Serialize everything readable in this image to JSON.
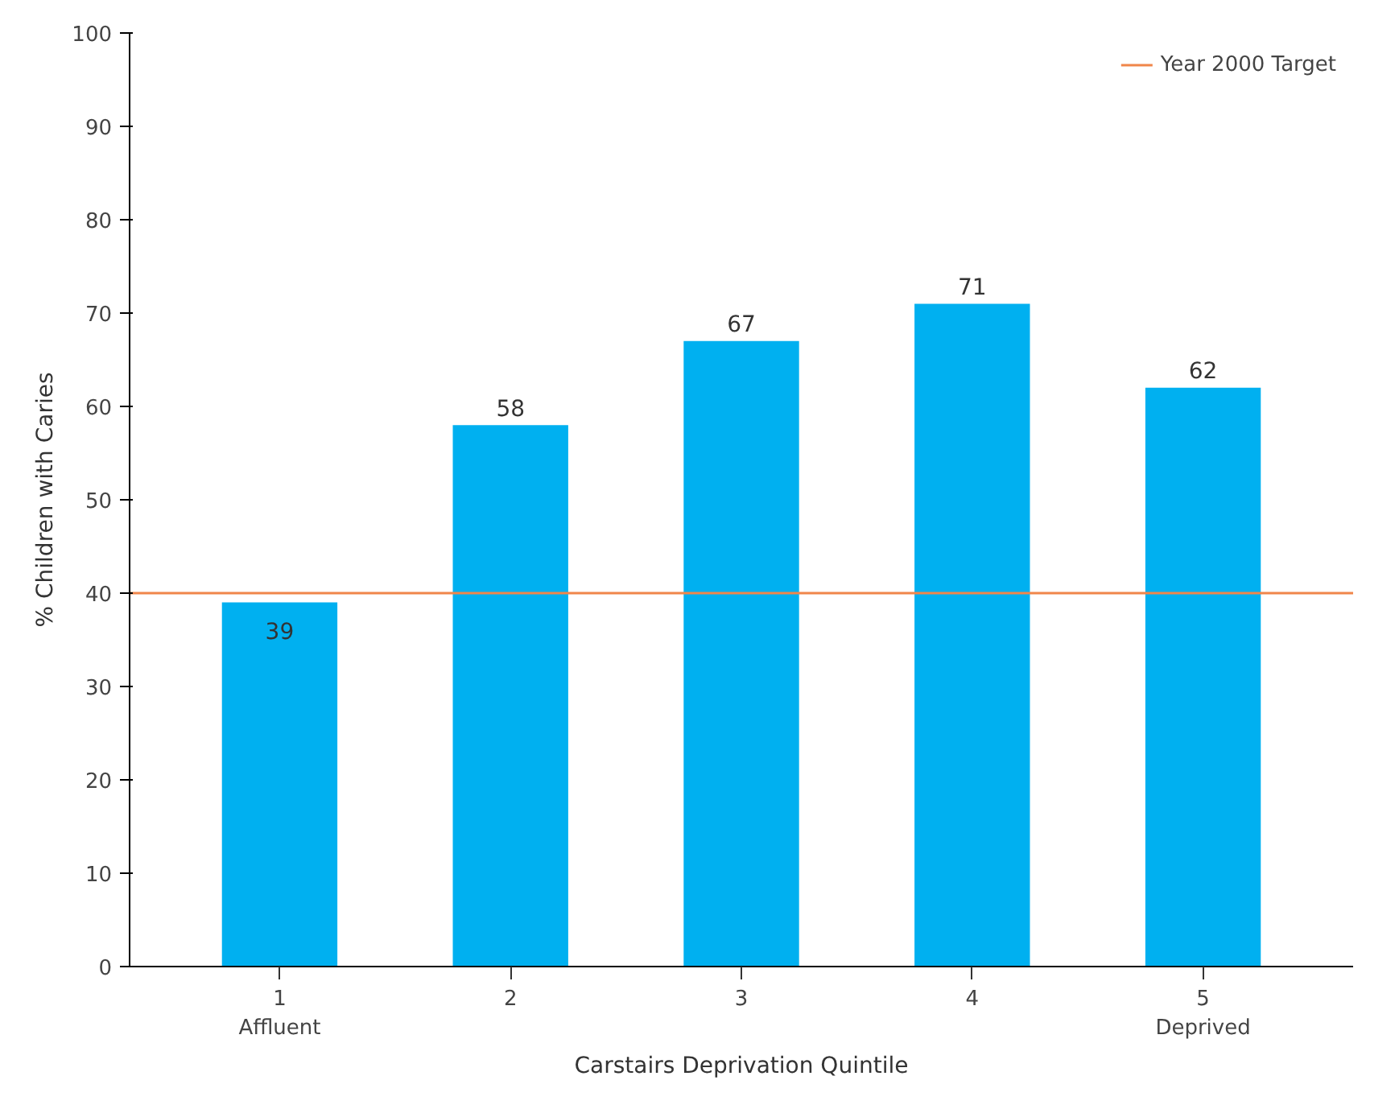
{
  "chart_data": {
    "type": "bar",
    "categories": [
      "1\nAffluent",
      "2",
      "3",
      "4",
      "5\nDeprived"
    ],
    "values": [
      39,
      58,
      67,
      71,
      62
    ],
    "color": "#00b0f0",
    "xlabel": "Carstairs Deprivation Quintile",
    "ylabel": "% Children with Caries",
    "ylim": [
      0,
      100
    ],
    "yticks": [
      0,
      10,
      20,
      30,
      40,
      50,
      60,
      70,
      80,
      90,
      100
    ],
    "ref_lines": [
      {
        "axis": "y",
        "value": 40,
        "label": "Year 2000 Target",
        "color": "#f0864a"
      }
    ],
    "data_labels": true,
    "grid": false,
    "legend": "top right"
  }
}
